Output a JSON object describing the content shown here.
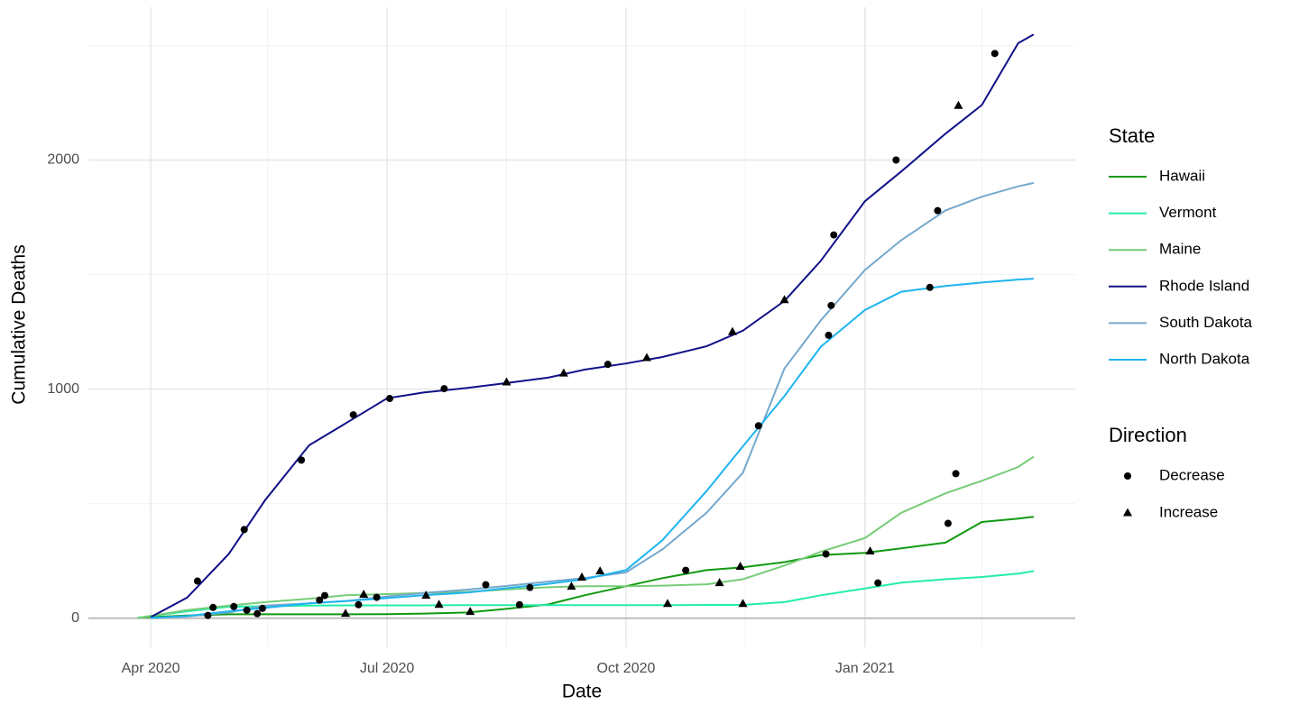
{
  "chart_data": {
    "type": "line",
    "xlabel": "Date",
    "ylabel": "Cumulative Deaths",
    "xlim": [
      "2020-03-08",
      "2021-03-23"
    ],
    "ylim": [
      -127,
      2667
    ],
    "xticks": [
      {
        "value": "2020-04-01",
        "label": "Apr 2020"
      },
      {
        "value": "2020-07-01",
        "label": "Jul 2020"
      },
      {
        "value": "2020-10-01",
        "label": "Oct 2020"
      },
      {
        "value": "2021-01-01",
        "label": "Jan 2021"
      }
    ],
    "yticks": [
      0,
      1000,
      2000
    ],
    "x_minor_grid": [
      "2020-05-16",
      "2020-08-16",
      "2020-11-16",
      "2021-02-15"
    ],
    "y_minor_grid": [
      500,
      1500,
      2500
    ],
    "grid": true,
    "hline_y": 0,
    "legend_position": "right",
    "legend_title": "State",
    "x": [
      "2020-03-27",
      "2020-04-01",
      "2020-04-15",
      "2020-05-01",
      "2020-05-15",
      "2020-06-01",
      "2020-06-15",
      "2020-07-01",
      "2020-07-15",
      "2020-08-01",
      "2020-08-15",
      "2020-09-01",
      "2020-09-15",
      "2020-10-01",
      "2020-10-15",
      "2020-11-01",
      "2020-11-15",
      "2020-12-01",
      "2020-12-15",
      "2021-01-01",
      "2021-01-15",
      "2021-02-01",
      "2021-02-15",
      "2021-03-01",
      "2021-03-07"
    ],
    "series": [
      {
        "name": "Hawaii",
        "color": "#119911",
        "values": [
          3,
          5,
          12,
          17,
          17,
          17,
          17,
          18,
          20,
          25,
          40,
          60,
          100,
          140,
          175,
          210,
          222,
          245,
          275,
          285,
          305,
          330,
          420,
          435,
          443
        ]
      },
      {
        "name": "Vermont",
        "color": "#22eeaa",
        "values": [
          2,
          10,
          30,
          50,
          52,
          55,
          56,
          56,
          56,
          57,
          57,
          57,
          57,
          57,
          57,
          58,
          58,
          70,
          100,
          130,
          155,
          170,
          180,
          195,
          205
        ]
      },
      {
        "name": "Maine",
        "color": "#77cc77",
        "values": [
          1,
          10,
          35,
          55,
          70,
          85,
          100,
          105,
          110,
          115,
          125,
          135,
          140,
          140,
          142,
          148,
          170,
          230,
          290,
          350,
          460,
          545,
          600,
          660,
          705
        ]
      },
      {
        "name": "Rhode Island",
        "color": "#101088",
        "values": [
          null,
          5,
          90,
          280,
          515,
          755,
          850,
          960,
          985,
          1005,
          1025,
          1050,
          1085,
          1112,
          1140,
          1187,
          1255,
          1385,
          1560,
          1820,
          1950,
          2115,
          2240,
          2510,
          2548
        ]
      },
      {
        "name": "South Dakota",
        "color": "#75a8cc",
        "values": [
          null,
          1,
          8,
          25,
          55,
          65,
          75,
          95,
          110,
          125,
          140,
          160,
          175,
          200,
          300,
          460,
          635,
          1090,
          1300,
          1520,
          1650,
          1780,
          1840,
          1885,
          1900
        ]
      },
      {
        "name": "North Dakota",
        "color": "#1eb4f0",
        "values": [
          null,
          1,
          10,
          30,
          45,
          65,
          75,
          88,
          100,
          112,
          130,
          150,
          170,
          210,
          340,
          555,
          750,
          970,
          1185,
          1345,
          1425,
          1450,
          1465,
          1478,
          1482
        ]
      }
    ],
    "points_legend_title": "Direction",
    "points": [
      {
        "name": "Decrease",
        "shape": "circle",
        "color": "#000000",
        "x": [
          "2020-04-19",
          "2020-04-23",
          "2020-04-25",
          "2020-05-03",
          "2020-05-07",
          "2020-05-08",
          "2020-05-12",
          "2020-05-14",
          "2020-05-29",
          "2020-06-05",
          "2020-06-07",
          "2020-06-18",
          "2020-06-20",
          "2020-06-27",
          "2020-07-02",
          "2020-07-23",
          "2020-08-08",
          "2020-08-21",
          "2020-08-25",
          "2020-09-24",
          "2020-10-24",
          "2020-11-21",
          "2020-12-17",
          "2020-12-18",
          "2020-12-19",
          "2020-12-20",
          "2021-01-06",
          "2021-01-13",
          "2021-01-26",
          "2021-01-29",
          "2021-02-02",
          "2021-02-05",
          "2021-02-20"
        ],
        "y": [
          162,
          12,
          47,
          51,
          387,
          35,
          20,
          43,
          690,
          79,
          99,
          888,
          59,
          91,
          959,
          1002,
          146,
          59,
          134,
          1108,
          209,
          840,
          280,
          1235,
          1365,
          1673,
          154,
          2000,
          1444,
          1779,
          414,
          631,
          2465
        ]
      },
      {
        "name": "Increase",
        "shape": "triangle",
        "color": "#000000",
        "x": [
          "2020-06-15",
          "2020-06-22",
          "2020-07-16",
          "2020-07-21",
          "2020-08-02",
          "2020-08-16",
          "2020-09-07",
          "2020-09-10",
          "2020-09-14",
          "2020-09-21",
          "2020-10-09",
          "2020-10-17",
          "2020-11-06",
          "2020-11-11",
          "2020-11-14",
          "2020-11-15",
          "2020-12-01",
          "2021-01-03",
          "2021-02-06"
        ],
        "y": [
          20,
          103,
          99,
          59,
          28,
          1030,
          1069,
          138,
          178,
          205,
          1136,
          63,
          154,
          1250,
          225,
          63,
          1389,
          292,
          2237
        ]
      }
    ]
  }
}
